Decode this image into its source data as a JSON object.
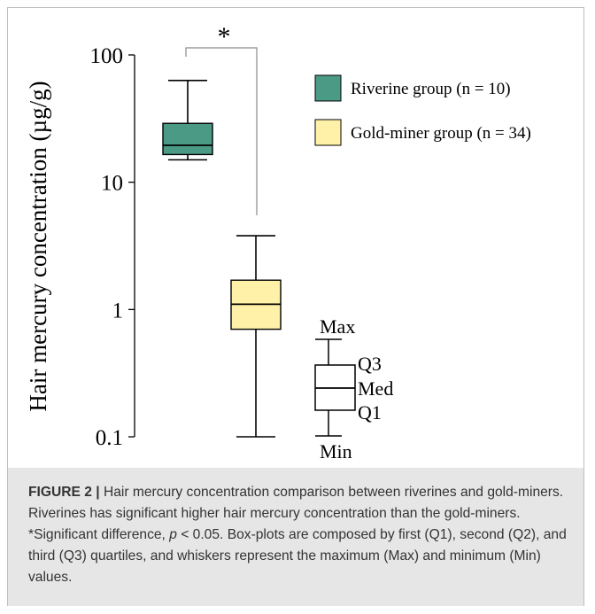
{
  "chart_data": {
    "type": "box",
    "y_scale": "log",
    "ylabel": "Hair mercury concentration (µg/g)",
    "ylim": [
      0.1,
      100
    ],
    "y_ticks": [
      {
        "value": 100,
        "label": "100"
      },
      {
        "value": 10,
        "label": "10"
      },
      {
        "value": 1,
        "label": "1"
      },
      {
        "value": 0.1,
        "label": "0.1"
      }
    ],
    "series": [
      {
        "name": "Riverine group (n = 10)",
        "color": "#4a9a86",
        "min": 15,
        "q1": 16.5,
        "median": 19.5,
        "q3": 29,
        "max": 63
      },
      {
        "name": "Gold-miner group (n = 34)",
        "color": "#fff2a8",
        "min": 0.1,
        "q1": 0.7,
        "median": 1.1,
        "q3": 1.7,
        "max": 3.8
      }
    ],
    "significance": {
      "label": "*"
    },
    "key_box": {
      "labels": {
        "max": "Max",
        "q3": "Q3",
        "median": "Med",
        "q1": "Q1",
        "min": "Min"
      }
    },
    "legend_position": "top-right"
  },
  "caption": {
    "figure_label": "FIGURE 2 |",
    "text_before_p": " Hair mercury concentration comparison between riverines and gold-miners. Riverines has significant higher hair mercury concentration than the gold-miners. *Significant difference, ",
    "p_symbol": "p",
    "text_after_p": " < 0.05. Box-plots are composed by first (Q1), second (Q2), and third (Q3) quartiles, and whiskers represent the maximum (Max) and minimum (Min) values."
  }
}
